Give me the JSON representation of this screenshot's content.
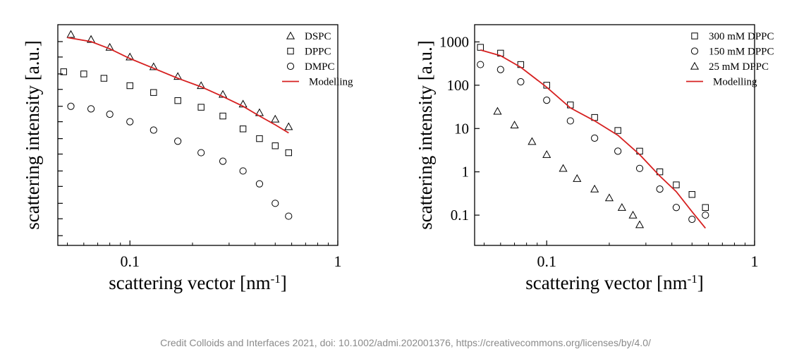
{
  "credit": "Credit Colloids and Interfaces 2021, doi: 10.1002/admi.202001376, https://creativecommons.org/licenses/by/4.0/",
  "colors": {
    "model": "#d62020",
    "marker": "#000000",
    "axis": "#000000"
  },
  "chart_data": [
    {
      "type": "scatter",
      "xlabel": "scattering vector [nm",
      "xlabel_sup": "-1",
      "xlabel_end": "]",
      "ylabel": "scattering intensity [a.u.]",
      "xscale": "log",
      "yscale": "log",
      "xlim": [
        0.045,
        1.0
      ],
      "ylim": [
        0.015,
        100000
      ],
      "xticks": [
        {
          "value": 0.1,
          "label": "0.1"
        },
        {
          "value": 1,
          "label": "1"
        }
      ],
      "yticks": [
        {
          "value": 0.03,
          "label": ""
        },
        {
          "value": 0.1,
          "label": ""
        },
        {
          "value": 0.3,
          "label": ""
        },
        {
          "value": 1,
          "label": ""
        },
        {
          "value": 3,
          "label": ""
        },
        {
          "value": 10,
          "label": ""
        },
        {
          "value": 30,
          "label": ""
        },
        {
          "value": 100,
          "label": ""
        },
        {
          "value": 300,
          "label": ""
        },
        {
          "value": 1000,
          "label": ""
        },
        {
          "value": 3000,
          "label": ""
        },
        {
          "value": 10000,
          "label": ""
        },
        {
          "value": 30000,
          "label": ""
        }
      ],
      "grid": false,
      "legend_position": "top-right",
      "series": [
        {
          "name": "DSPC",
          "marker": "triangle",
          "x": [
            0.052,
            0.065,
            0.08,
            0.1,
            0.13,
            0.17,
            0.22,
            0.28,
            0.35,
            0.42,
            0.5,
            0.58
          ],
          "y": [
            50000,
            35000,
            20000,
            10000,
            5000,
            2500,
            1300,
            700,
            350,
            190,
            120,
            70
          ]
        },
        {
          "name": "DPPC",
          "marker": "square",
          "x": [
            0.048,
            0.06,
            0.075,
            0.1,
            0.13,
            0.17,
            0.22,
            0.28,
            0.35,
            0.42,
            0.5,
            0.58
          ],
          "y": [
            3500,
            3000,
            2200,
            1300,
            800,
            450,
            280,
            150,
            60,
            30,
            18,
            11
          ]
        },
        {
          "name": "DMPC",
          "marker": "circle",
          "x": [
            0.052,
            0.065,
            0.08,
            0.1,
            0.13,
            0.17,
            0.22,
            0.28,
            0.35,
            0.42,
            0.5,
            0.58
          ],
          "y": [
            300,
            250,
            170,
            100,
            55,
            25,
            11,
            6,
            3,
            1.2,
            0.3,
            0.12
          ]
        },
        {
          "name": "Modelling",
          "marker": "line",
          "x": [
            0.05,
            0.065,
            0.08,
            0.1,
            0.13,
            0.17,
            0.22,
            0.28,
            0.35,
            0.42,
            0.5,
            0.58
          ],
          "y": [
            40000,
            30000,
            18000,
            9000,
            4500,
            2200,
            1200,
            600,
            300,
            150,
            80,
            45
          ]
        }
      ]
    },
    {
      "type": "scatter",
      "xlabel": "scattering vector [nm",
      "xlabel_sup": "-1",
      "xlabel_end": "]",
      "ylabel": "scattering intensity [a.u.]",
      "xscale": "log",
      "yscale": "log",
      "xlim": [
        0.045,
        1.0
      ],
      "ylim": [
        0.02,
        2500
      ],
      "xticks": [
        {
          "value": 0.1,
          "label": "0.1"
        },
        {
          "value": 1,
          "label": "1"
        }
      ],
      "yticks": [
        {
          "value": 0.1,
          "label": "0.1"
        },
        {
          "value": 1,
          "label": "1"
        },
        {
          "value": 10,
          "label": "10"
        },
        {
          "value": 100,
          "label": "100"
        },
        {
          "value": 1000,
          "label": "1000"
        }
      ],
      "grid": false,
      "legend_position": "top-right",
      "series": [
        {
          "name": "300 mM DPPC",
          "marker": "square",
          "x": [
            0.048,
            0.06,
            0.075,
            0.1,
            0.13,
            0.17,
            0.22,
            0.28,
            0.35,
            0.42,
            0.5,
            0.58
          ],
          "y": [
            750,
            550,
            300,
            100,
            35,
            18,
            9,
            3,
            1.0,
            0.5,
            0.3,
            0.15
          ]
        },
        {
          "name": "150 mM DPPC",
          "marker": "circle",
          "x": [
            0.048,
            0.06,
            0.075,
            0.1,
            0.13,
            0.17,
            0.22,
            0.28,
            0.35,
            0.42,
            0.5,
            0.58
          ],
          "y": [
            300,
            230,
            120,
            45,
            15,
            6,
            3,
            1.2,
            0.4,
            0.15,
            0.08,
            0.1
          ]
        },
        {
          "name": "25 mM DPPC",
          "marker": "triangle",
          "x": [
            0.058,
            0.07,
            0.085,
            0.1,
            0.12,
            0.14,
            0.17,
            0.2,
            0.23,
            0.26,
            0.28
          ],
          "y": [
            25,
            12,
            5,
            2.5,
            1.2,
            0.7,
            0.4,
            0.25,
            0.15,
            0.1,
            0.06
          ]
        },
        {
          "name": "Modelling",
          "marker": "line",
          "x": [
            0.048,
            0.06,
            0.075,
            0.1,
            0.13,
            0.17,
            0.22,
            0.28,
            0.35,
            0.42,
            0.5,
            0.58
          ],
          "y": [
            650,
            480,
            260,
            90,
            30,
            15,
            7,
            2.5,
            0.8,
            0.35,
            0.12,
            0.05
          ]
        }
      ]
    }
  ]
}
